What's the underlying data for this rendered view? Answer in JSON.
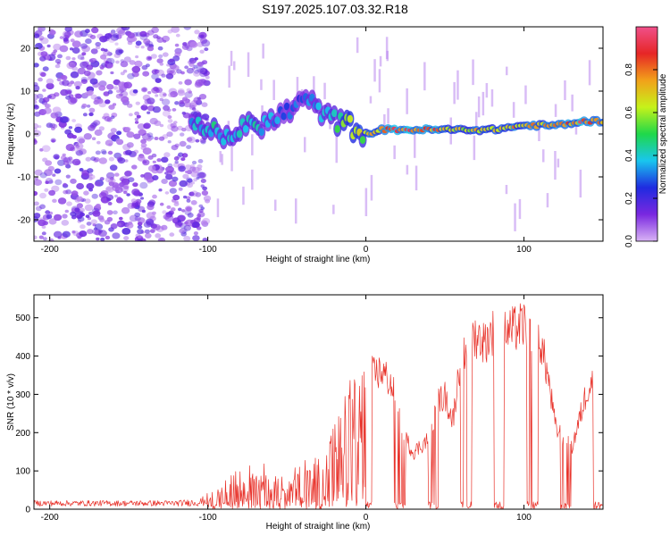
{
  "title": "S197.2025.107.03.32.R18",
  "colors": {
    "snr_line": "#e8322a",
    "signal_ridge": "#2db84a",
    "noise_purple": "#7a28e0",
    "colorbar_stops": [
      "#d9b3f5",
      "#7a28e0",
      "#1f2be0",
      "#19c6ee",
      "#1fd84a",
      "#c6f21a",
      "#f2a11a",
      "#e62626",
      "#f0508a"
    ]
  },
  "chart_data": [
    {
      "type": "heatmap",
      "xlabel": "Height of straight line (km)",
      "ylabel": "Frequency (Hz)",
      "xlim": [
        -210,
        150
      ],
      "ylim": [
        -25,
        25
      ],
      "x_ticks": [
        "-200",
        "-100",
        "0",
        "100"
      ],
      "y_ticks": [
        "20",
        "10",
        "0",
        "-10",
        "-20"
      ],
      "colorbar": {
        "label": "Normalized spectral amplitude",
        "range": [
          0,
          1
        ],
        "ticks": [
          "0.0",
          "0.2",
          "0.4",
          "0.6",
          "0.8"
        ]
      },
      "noise_region_x": [
        -210,
        -100
      ],
      "ridge": {
        "x": [
          -110,
          -100,
          -90,
          -80,
          -70,
          -60,
          -50,
          -40,
          -30,
          -20,
          -10,
          0,
          10,
          20,
          40,
          60,
          80,
          100,
          120,
          140,
          150
        ],
        "freq": [
          4,
          1,
          -1,
          1,
          2,
          3,
          5,
          8,
          6,
          3,
          2,
          0,
          1,
          1,
          1,
          1,
          1,
          2,
          2,
          3,
          3
        ],
        "amplitude": [
          0.35,
          0.45,
          0.4,
          0.45,
          0.45,
          0.35,
          0.3,
          0.3,
          0.35,
          0.45,
          0.6,
          0.65,
          0.75,
          0.95,
          0.85,
          0.7,
          0.7,
          0.75,
          0.8,
          0.9,
          0.7
        ]
      }
    },
    {
      "type": "line",
      "xlabel": "Height of straight line (km)",
      "ylabel": "SNR (10 * v/v)",
      "xlim": [
        -210,
        150
      ],
      "ylim": [
        0,
        560
      ],
      "x_ticks": [
        "-200",
        "-100",
        "0",
        "100"
      ],
      "y_ticks": [
        "500",
        "400",
        "300",
        "200",
        "100",
        "0"
      ],
      "envelope_x": [
        -210,
        -180,
        -150,
        -120,
        -105,
        -100,
        -90,
        -80,
        -70,
        -60,
        -50,
        -40,
        -30,
        -25,
        -20,
        -15,
        -10,
        -5,
        0,
        5,
        10,
        15,
        20,
        25,
        30,
        35,
        40,
        45,
        50,
        55,
        60,
        65,
        70,
        75,
        80,
        85,
        90,
        95,
        100,
        105,
        110,
        115,
        120,
        125,
        130,
        135,
        140,
        145,
        150
      ],
      "envelope_y": [
        20,
        20,
        20,
        20,
        25,
        40,
        70,
        110,
        120,
        120,
        100,
        130,
        140,
        170,
        230,
        280,
        360,
        330,
        390,
        380,
        390,
        360,
        300,
        200,
        160,
        180,
        200,
        300,
        320,
        250,
        430,
        480,
        490,
        470,
        500,
        510,
        500,
        510,
        520,
        510,
        480,
        380,
        230,
        200,
        170,
        250,
        340,
        370,
        330
      ]
    }
  ]
}
